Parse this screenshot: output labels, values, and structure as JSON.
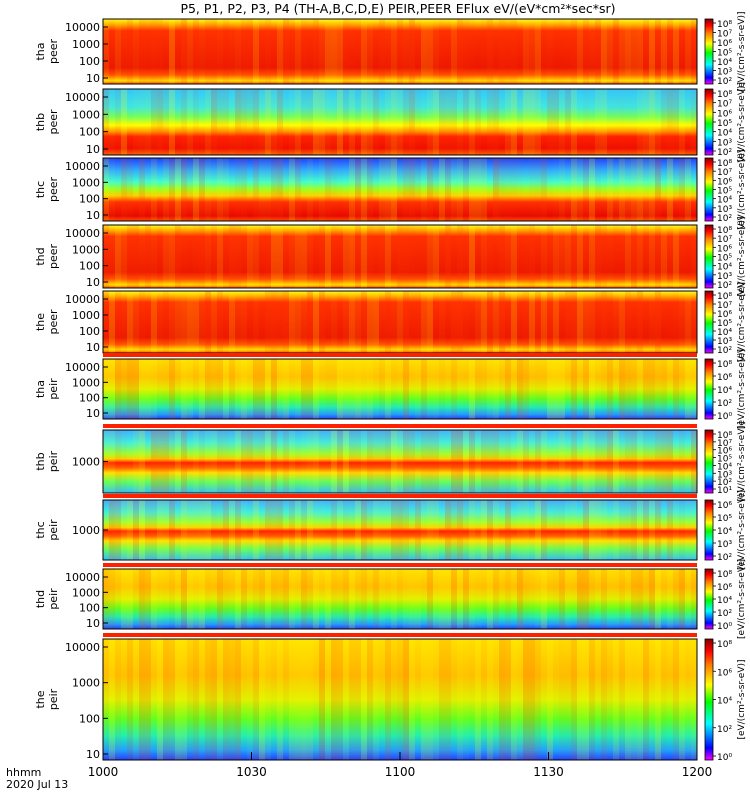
{
  "title": "P5, P1, P2, P3, P4 (TH-A,B,C,D,E) PEIR,PEER EFlux eV/(eV*cm²*sec*sr)",
  "footer": {
    "line1": "hhmm",
    "line2": "2020 Jul 13"
  },
  "colors": {
    "low": "#0000ff",
    "mid": "#00ff00",
    "high": "#ff0000",
    "top": "#800000"
  },
  "chart_data": {
    "type": "heatmap",
    "x_ticks": [
      "1000",
      "1030",
      "1100",
      "1130",
      "1200"
    ],
    "x_range": [
      "10:00",
      "12:00"
    ],
    "panels": [
      {
        "probe": "tha",
        "species": "peer",
        "yticks": [
          "10000",
          "1000",
          "100",
          "10"
        ],
        "colorbar_ticks": [
          "10⁸",
          "10⁷",
          "10⁶",
          "10⁵",
          "10⁴",
          "10³",
          "10²"
        ],
        "colorbar_label": "[eV/(cm²-s-sr-eV)]"
      },
      {
        "probe": "thb",
        "species": "peer",
        "yticks": [
          "10000",
          "1000",
          "100",
          "10"
        ],
        "colorbar_ticks": [
          "10⁸",
          "10⁷",
          "10⁶",
          "10⁵",
          "10⁴",
          "10³",
          "10²"
        ],
        "colorbar_label": "[eV/(cm²-s-sr-eV)]"
      },
      {
        "probe": "thc",
        "species": "peer",
        "yticks": [
          "10000",
          "1000",
          "100",
          "10"
        ],
        "colorbar_ticks": [
          "10⁸",
          "10⁷",
          "10⁶",
          "10⁵",
          "10⁴",
          "10³",
          "10²"
        ],
        "colorbar_label": "[eV/(cm²-s-sr-eV)]"
      },
      {
        "probe": "thd",
        "species": "peer",
        "yticks": [
          "10000",
          "1000",
          "100",
          "10"
        ],
        "colorbar_ticks": [
          "10⁸",
          "10⁷",
          "10⁶",
          "10⁵",
          "10⁴",
          "10³",
          "10²"
        ],
        "colorbar_label": "[eV/(cm²-s-sr-eV)]"
      },
      {
        "probe": "the",
        "species": "peer",
        "yticks": [
          "10000",
          "1000",
          "100",
          "10"
        ],
        "colorbar_ticks": [
          "10⁸",
          "10⁷",
          "10⁶",
          "10⁵",
          "10⁴",
          "10³",
          "10²"
        ],
        "colorbar_label": "[eV/(cm²-s-sr-eV)]"
      },
      {
        "probe": "tha",
        "species": "peir",
        "yticks": [
          "10000",
          "1000",
          "100",
          "10"
        ],
        "colorbar_ticks": [
          "10⁸",
          "10⁶",
          "10⁴",
          "10²",
          "10⁰"
        ],
        "colorbar_label": "[eV/(cm²-s-sr-eV)]"
      },
      {
        "probe": "thb",
        "species": "peir",
        "yticks": [
          "1000"
        ],
        "colorbar_ticks": [
          "10⁸",
          "10⁷",
          "10⁶",
          "10⁵",
          "10⁴",
          "10³",
          "10²",
          "10¹"
        ],
        "colorbar_label": "[eV/(cm²-s-sr-eV)]"
      },
      {
        "probe": "thc",
        "species": "peir",
        "yticks": [
          "1000"
        ],
        "colorbar_ticks": [
          "10⁶",
          "10⁵",
          "10⁴",
          "10³",
          "10²"
        ],
        "colorbar_label": "[eV/(cm²-s-sr-eV)]"
      },
      {
        "probe": "thd",
        "species": "peir",
        "yticks": [
          "10000",
          "1000",
          "100",
          "10"
        ],
        "colorbar_ticks": [
          "10⁸",
          "10⁶",
          "10⁴",
          "10²",
          "10⁰"
        ],
        "colorbar_label": "[eV/(cm²-s-sr-eV)]"
      },
      {
        "probe": "the",
        "species": "peir",
        "yticks": [
          "10000",
          "1000",
          "100",
          "10"
        ],
        "colorbar_ticks": [
          "10⁸",
          "10⁶",
          "10⁴",
          "10²",
          "10⁰"
        ],
        "colorbar_label": "[eV/(cm²-s-sr-eV)]"
      }
    ]
  }
}
